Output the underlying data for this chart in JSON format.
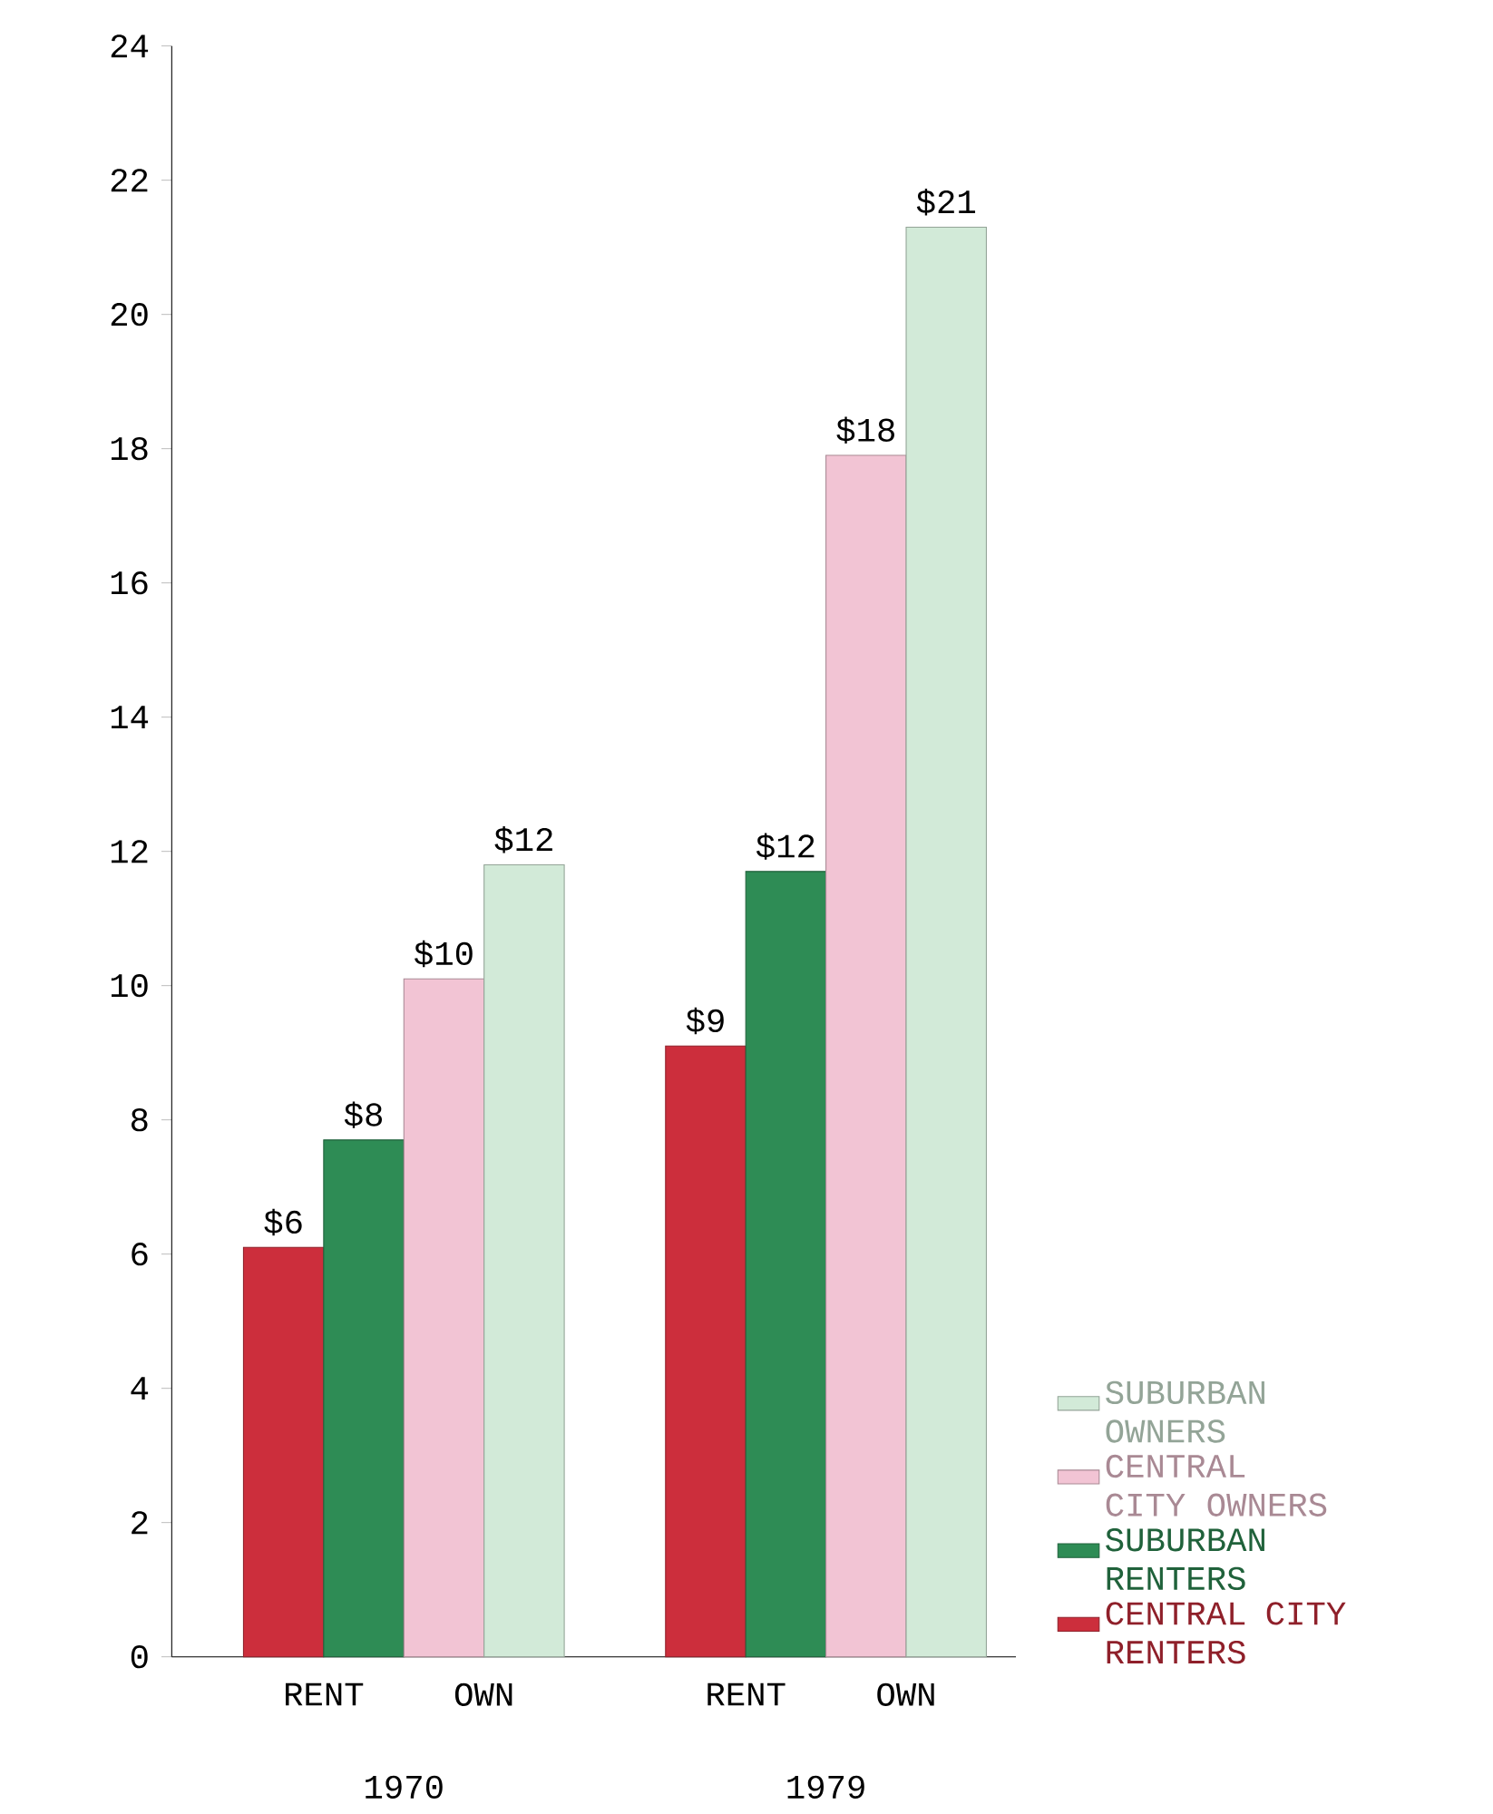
{
  "chart_data": {
    "type": "bar",
    "categories": [
      "1970",
      "1979"
    ],
    "series": [
      {
        "name": "CENTRAL CITY RENTERS",
        "color": "#cc2e3c",
        "values": [
          6.1,
          9.1
        ],
        "value_labels": [
          "$6",
          "$9"
        ]
      },
      {
        "name": "SUBURBAN RENTERS",
        "color": "#2e8c55",
        "values": [
          7.7,
          11.7
        ],
        "value_labels": [
          "$8",
          "$12"
        ]
      },
      {
        "name": "CENTRAL CITY OWNERS",
        "color": "#f2c4d4",
        "values": [
          10.1,
          17.9
        ],
        "value_labels": [
          "$10",
          "$18"
        ]
      },
      {
        "name": "SUBURBAN OWNERS",
        "color": "#d2ead8",
        "values": [
          11.8,
          21.3
        ],
        "value_labels": [
          "$12",
          "$21"
        ]
      }
    ],
    "ylim": [
      0,
      24
    ],
    "yticks": [
      0,
      2,
      4,
      6,
      8,
      10,
      12,
      14,
      16,
      18,
      20,
      22,
      24
    ],
    "legend": "right",
    "annotations": [
      "RENT",
      "OWN",
      "RENT",
      "OWN"
    ]
  }
}
